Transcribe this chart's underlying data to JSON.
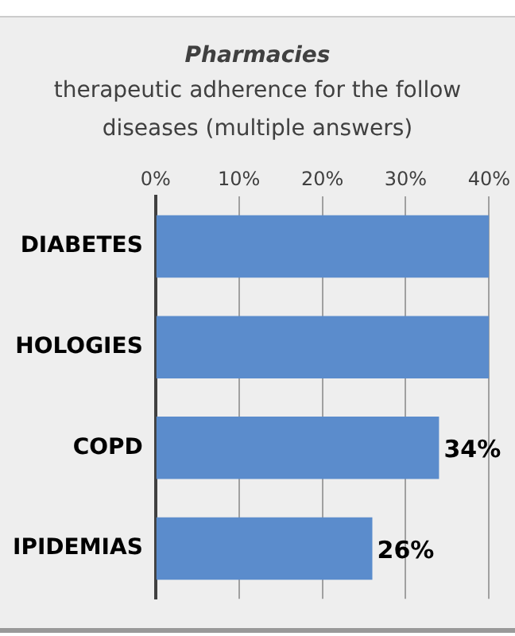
{
  "chart_data": {
    "type": "bar",
    "orientation": "horizontal",
    "title": "Pharmacies",
    "subtitle": "therapeutic adherence for the follow diseases (multiple answers)",
    "categories": [
      "DIABETES",
      "HOLOGIES",
      "COPD",
      "IPIDEMIAS"
    ],
    "values": [
      40,
      40,
      34,
      26
    ],
    "color": "#5b8ccc",
    "value_labels": [
      null,
      null,
      "34%",
      "26%"
    ],
    "xlim": [
      0,
      40
    ],
    "xticks": [
      {
        "value": 0,
        "label": "0%"
      },
      {
        "value": 10,
        "label": "10%"
      },
      {
        "value": 20,
        "label": "20%"
      },
      {
        "value": 30,
        "label": "30%"
      },
      {
        "value": 40,
        "label": "40%"
      }
    ],
    "grid": "x",
    "legend": false
  }
}
